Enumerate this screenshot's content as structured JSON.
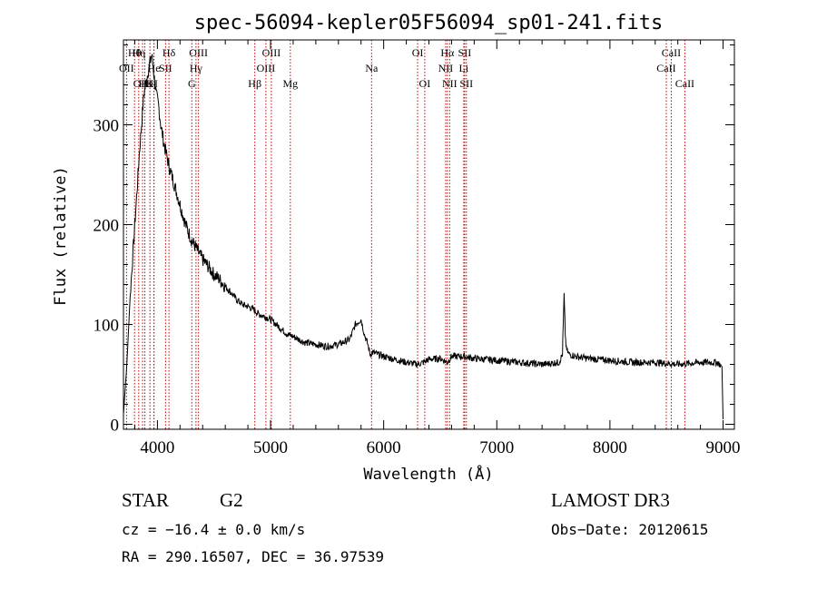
{
  "chart_data": {
    "type": "line",
    "title": "spec-56094-kepler05F56094_sp01-241.fits",
    "xlabel": "Wavelength (Å)",
    "ylabel": "Flux (relative)",
    "xlim": [
      3700,
      9100
    ],
    "ylim": [
      -5,
      385
    ],
    "xticks": [
      4000,
      5000,
      6000,
      7000,
      8000,
      9000
    ],
    "yticks": [
      0,
      100,
      200,
      300
    ],
    "series": [
      {
        "name": "spectrum",
        "x": [
          3700,
          3730,
          3760,
          3800,
          3840,
          3880,
          3920,
          3950,
          3970,
          3990,
          4010,
          4030,
          4060,
          4100,
          4150,
          4200,
          4250,
          4300,
          4350,
          4400,
          4450,
          4500,
          4550,
          4600,
          4650,
          4700,
          4750,
          4800,
          4850,
          4900,
          4950,
          5000,
          5050,
          5100,
          5150,
          5200,
          5300,
          5400,
          5500,
          5600,
          5700,
          5750,
          5800,
          5830,
          5860,
          5880,
          5900,
          5950,
          6000,
          6100,
          6200,
          6300,
          6350,
          6400,
          6500,
          6563,
          6600,
          6700,
          6800,
          6900,
          7000,
          7200,
          7400,
          7550,
          7580,
          7595,
          7605,
          7615,
          7640,
          7700,
          7800,
          8000,
          8200,
          8400,
          8600,
          8800,
          8950,
          8990,
          9000
        ],
        "y": [
          10,
          60,
          130,
          200,
          270,
          330,
          355,
          370,
          350,
          330,
          320,
          300,
          280,
          260,
          240,
          220,
          200,
          185,
          175,
          165,
          158,
          150,
          145,
          138,
          132,
          125,
          120,
          118,
          115,
          110,
          108,
          105,
          100,
          95,
          90,
          88,
          82,
          80,
          78,
          80,
          85,
          100,
          105,
          90,
          80,
          70,
          72,
          70,
          68,
          65,
          62,
          60,
          62,
          65,
          66,
          62,
          68,
          68,
          66,
          65,
          64,
          62,
          60,
          62,
          70,
          130,
          90,
          75,
          70,
          68,
          66,
          64,
          62,
          62,
          60,
          62,
          62,
          58,
          5
        ]
      }
    ],
    "lines": [
      {
        "label": "Hθ",
        "x": 3798,
        "row": 1
      },
      {
        "label": "OII",
        "x": 3727,
        "row": 2
      },
      {
        "label": "OIII",
        "x": 3869,
        "row": 3
      },
      {
        "label": "Hε",
        "x": 3889,
        "row": 3
      },
      {
        "label": "Hη",
        "x": 3835,
        "row": 1
      },
      {
        "label": "He",
        "x": 3970,
        "row": 2
      },
      {
        "label": "K",
        "x": 3934,
        "row": 3
      },
      {
        "label": "H",
        "x": 3969,
        "row": 3
      },
      {
        "label": "Hδ",
        "x": 4102,
        "row": 1
      },
      {
        "label": "SII",
        "x": 4072,
        "row": 2
      },
      {
        "label": "OIII",
        "x": 4363,
        "row": 1
      },
      {
        "label": "Hγ",
        "x": 4341,
        "row": 2
      },
      {
        "label": "G",
        "x": 4304,
        "row": 3
      },
      {
        "label": "Hβ",
        "x": 4861,
        "row": 3
      },
      {
        "label": "OIII",
        "x": 5007,
        "row": 1
      },
      {
        "label": "OIII",
        "x": 4959,
        "row": 2
      },
      {
        "label": "Mg",
        "x": 5175,
        "row": 3
      },
      {
        "label": "Na",
        "x": 5893,
        "row": 2
      },
      {
        "label": "OI",
        "x": 6300,
        "row": 1
      },
      {
        "label": "OI",
        "x": 6363,
        "row": 3
      },
      {
        "label": "Hα",
        "x": 6563,
        "row": 1
      },
      {
        "label": "NII",
        "x": 6548,
        "row": 2
      },
      {
        "label": "NII",
        "x": 6583,
        "row": 3
      },
      {
        "label": "SII",
        "x": 6716,
        "row": 1
      },
      {
        "label": "Li",
        "x": 6708,
        "row": 2
      },
      {
        "label": "SII",
        "x": 6731,
        "row": 3
      },
      {
        "label": "CaII",
        "x": 8542,
        "row": 1
      },
      {
        "label": "CaII",
        "x": 8498,
        "row": 2
      },
      {
        "label": "CaII",
        "x": 8662,
        "row": 3
      }
    ]
  },
  "info": {
    "object_class": "STAR",
    "subclass": "G2",
    "survey": "LAMOST DR3",
    "cz": "cz = −16.4 ± 0.0 km/s",
    "obs_date": "Obs−Date: 20120615",
    "coords": "RA = 290.16507, DEC =  36.97539"
  }
}
